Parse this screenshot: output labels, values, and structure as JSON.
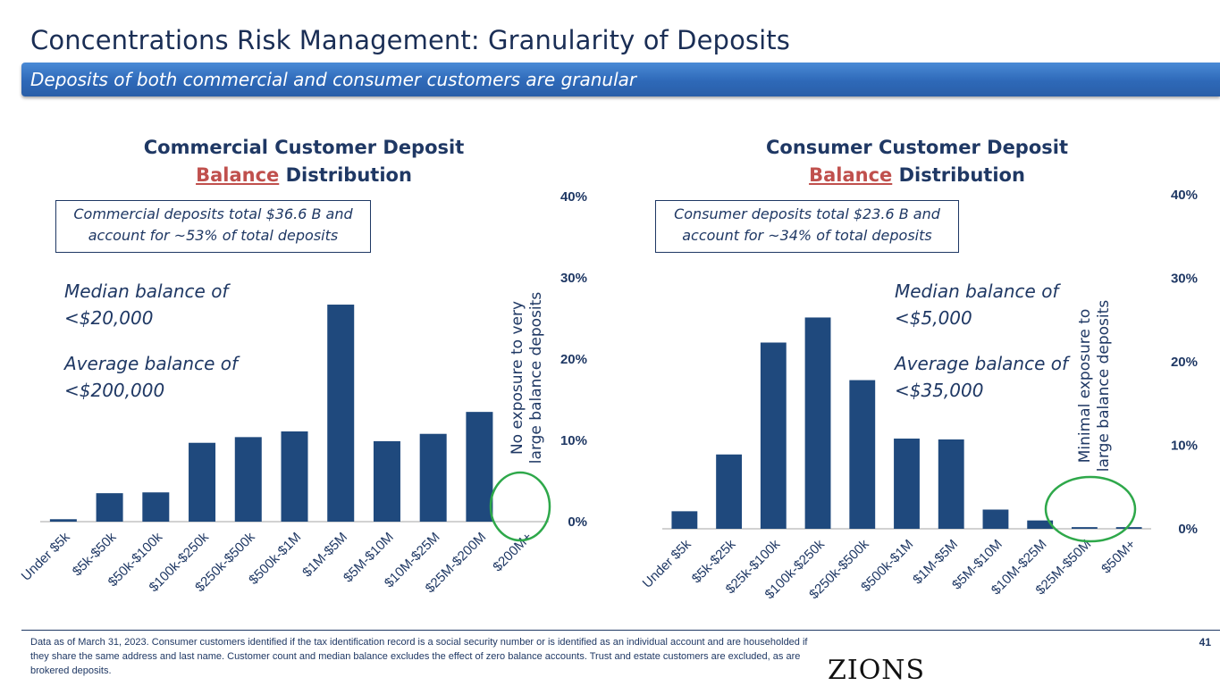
{
  "header": {
    "title": "Concentrations Risk Management: Granularity of Deposits",
    "banner": "Deposits of both commercial and consumer customers are granular"
  },
  "commercial": {
    "title_line1": "Commercial Customer Deposit",
    "title_accent": "Balance",
    "title_rest": " Distribution",
    "callout_line1": "Commercial deposits total $36.6 B and",
    "callout_line2": "account for ~53% of total deposits",
    "median_line1": "Median balance of",
    "median_line2": "<$20,000",
    "average_line1": "Average balance of",
    "average_line2": "<$200,000",
    "note_line1": "No exposure to very",
    "note_line2": "large balance deposits"
  },
  "consumer": {
    "title_line1": "Consumer Customer Deposit",
    "title_accent": "Balance",
    "title_rest": " Distribution",
    "callout_line1": "Consumer deposits total $23.6 B and",
    "callout_line2": "account for ~34% of total deposits",
    "median_line1": "Median balance of",
    "median_line2": "<$5,000",
    "average_line1": "Average balance of",
    "average_line2": "<$35,000",
    "note_line1": "Minimal exposure to",
    "note_line2": "large balance deposits"
  },
  "colors": {
    "bar": "#1f497d",
    "circle": "#2ea84a",
    "axis": "#a6a6a6",
    "accent": "#c0504d"
  },
  "chart_data": [
    {
      "type": "bar",
      "title": "Commercial Customer Deposit Balance Distribution",
      "categories": [
        "Under $5k",
        "$5k-$50k",
        "$50k-$100k",
        "$100k-$250k",
        "$250k-$500k",
        "$500k-$1M",
        "$1M-$5M",
        "$5M-$10M",
        "$10M-$25M",
        "$25M-$200M",
        "$200M+"
      ],
      "values": [
        0.3,
        3.5,
        3.6,
        9.7,
        10.4,
        11.1,
        26.7,
        9.9,
        10.8,
        13.5,
        0
      ],
      "yticks": [
        "0%",
        "10%",
        "20%",
        "30%",
        "40%"
      ],
      "ylim": [
        0,
        40
      ],
      "yaxis_side": "right",
      "grid": false
    },
    {
      "type": "bar",
      "title": "Consumer Customer Deposit Balance Distribution",
      "categories": [
        "Under $5k",
        "$5k-$25k",
        "$25k-$100k",
        "$100k-$250k",
        "$250k-$500k",
        "$500k-$1M",
        "$1M-$5M",
        "$5M-$10M",
        "$10M-$25M",
        "$25M-$50M",
        "$50M+"
      ],
      "values": [
        2.1,
        8.9,
        22.3,
        25.3,
        17.8,
        10.8,
        10.7,
        2.3,
        1.0,
        0.2,
        0.2
      ],
      "yticks": [
        "0%",
        "10%",
        "20%",
        "30%",
        "40%"
      ],
      "ylim": [
        0,
        40
      ],
      "yaxis_side": "right",
      "grid": false
    }
  ],
  "footer": {
    "note": "Data as of March 31, 2023. Consumer customers identified if the tax identification record is a social security number or is identified as an individual account and are householded if they share the same address and last name. Customer count and median balance excludes the effect of zero balance accounts. Trust and estate customers are excluded, as are brokered deposits.",
    "page_number": "41",
    "logo": "ZIONS BANCORPORATION"
  }
}
